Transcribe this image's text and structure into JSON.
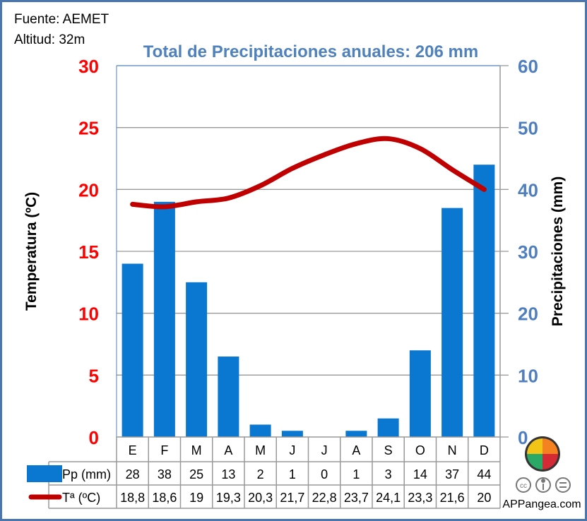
{
  "header": {
    "source": "Fuente: AEMET",
    "altitude": "Altitud: 32m"
  },
  "colors": {
    "bar": "#0a77d0",
    "line": "#c00000",
    "left_axis": "#ff0000",
    "right_axis": "#4f7fbf",
    "title": "#4f81bd",
    "frame": "#4a76b0"
  },
  "chart_data": {
    "type": "bar+line",
    "title": "Total de Precipitaciones anuales: 206 mm",
    "categories": [
      "E",
      "F",
      "M",
      "A",
      "M",
      "J",
      "J",
      "A",
      "S",
      "O",
      "N",
      "D"
    ],
    "series": [
      {
        "name": "Pp (mm)",
        "type": "bar",
        "axis": "right",
        "values": [
          28,
          38,
          25,
          13,
          2,
          1,
          0,
          1,
          3,
          14,
          37,
          44
        ]
      },
      {
        "name": "Tª (ºC)",
        "type": "line",
        "axis": "left",
        "values": [
          18.8,
          18.6,
          19,
          19.3,
          20.3,
          21.7,
          22.8,
          23.7,
          24.1,
          23.3,
          21.6,
          20
        ]
      }
    ],
    "series_display": {
      "pp": [
        "28",
        "38",
        "25",
        "13",
        "2",
        "1",
        "0",
        "1",
        "3",
        "14",
        "37",
        "44"
      ],
      "t": [
        "18,8",
        "18,6",
        "19",
        "19,3",
        "20,3",
        "21,7",
        "22,8",
        "23,7",
        "24,1",
        "23,3",
        "21,6",
        "20"
      ]
    },
    "ylabel_left": "Temperatura (ºC)",
    "ylabel_right": "Precipitaciones (mm)",
    "ylim_left": [
      0,
      30
    ],
    "ylim_right": [
      0,
      60
    ],
    "yticks_left": [
      "0",
      "5",
      "10",
      "15",
      "20",
      "25",
      "30"
    ],
    "yticks_right": [
      "0",
      "10",
      "20",
      "30",
      "40",
      "50",
      "60"
    ],
    "grid": true,
    "legend_placement": "bottom table"
  },
  "branding": {
    "site": "APPangea.com",
    "license_icons": [
      "cc-icon",
      "by-icon",
      "nd-icon"
    ]
  }
}
